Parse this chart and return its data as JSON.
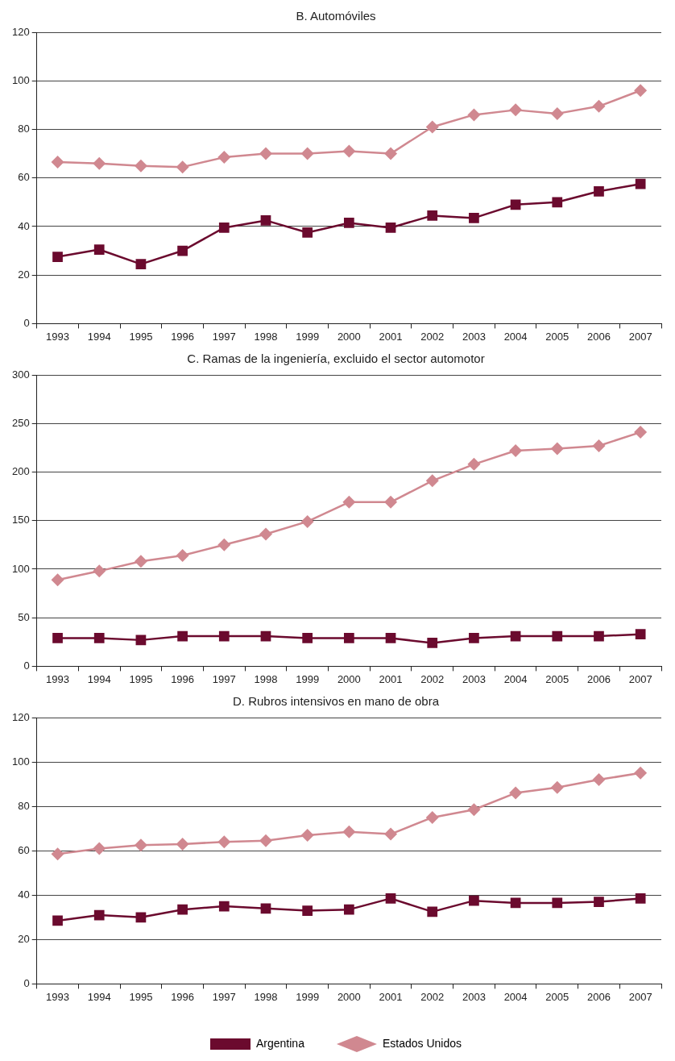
{
  "chart_data": [
    {
      "type": "line",
      "title": "B. Automóviles",
      "categories": [
        "1993",
        "1994",
        "1995",
        "1996",
        "1997",
        "1998",
        "1999",
        "2000",
        "2001",
        "2002",
        "2003",
        "2004",
        "2005",
        "2006",
        "2007"
      ],
      "ylim": [
        0,
        120
      ],
      "yticks": [
        0,
        20,
        40,
        60,
        80,
        100,
        120
      ],
      "grid": "y",
      "legend": false,
      "series": [
        {
          "color": "#6b0a2e",
          "marker": "square",
          "values": [
            27.5,
            30.5,
            24.5,
            30,
            39.5,
            42.5,
            37.5,
            41.5,
            39.5,
            44.5,
            43.5,
            49,
            50,
            54.5,
            57.5
          ]
        },
        {
          "color": "#d08890",
          "marker": "diamond",
          "values": [
            66.5,
            66,
            65,
            64.5,
            68.5,
            70,
            70,
            71,
            70,
            81,
            86,
            88,
            86.5,
            89.5,
            96
          ]
        }
      ]
    },
    {
      "type": "line",
      "title": "C. Ramas de la ingeniería, excluido el sector automotor",
      "categories": [
        "1993",
        "1994",
        "1995",
        "1996",
        "1997",
        "1998",
        "1999",
        "2000",
        "2001",
        "2002",
        "2003",
        "2004",
        "2005",
        "2006",
        "2007"
      ],
      "ylim": [
        0,
        300
      ],
      "yticks": [
        0,
        50,
        100,
        150,
        200,
        250,
        300
      ],
      "grid": "y",
      "legend": false,
      "series": [
        {
          "color": "#6b0a2e",
          "marker": "square",
          "values": [
            29,
            29,
            27,
            31,
            31,
            31,
            29,
            29,
            29,
            24,
            29,
            31,
            31,
            31,
            33
          ]
        },
        {
          "color": "#d08890",
          "marker": "diamond",
          "values": [
            89,
            98,
            108,
            114,
            125,
            136,
            149,
            169,
            169,
            191,
            208,
            222,
            224,
            227,
            241
          ]
        }
      ]
    },
    {
      "type": "line",
      "title": "D. Rubros intensivos en mano de obra",
      "categories": [
        "1993",
        "1994",
        "1995",
        "1996",
        "1997",
        "1998",
        "1999",
        "2000",
        "2001",
        "2002",
        "2003",
        "2004",
        "2005",
        "2006",
        "2007"
      ],
      "ylim": [
        0,
        120
      ],
      "yticks": [
        0,
        20,
        40,
        60,
        80,
        100,
        120
      ],
      "grid": "y",
      "legend": "bottom",
      "series": [
        {
          "name": "Argentina",
          "color": "#6b0a2e",
          "marker": "square",
          "values": [
            28.5,
            31,
            30,
            33.5,
            35,
            34,
            33,
            33.5,
            38.5,
            32.5,
            37.5,
            36.5,
            36.5,
            37,
            38.5
          ]
        },
        {
          "name": "Estados Unidos",
          "color": "#d08890",
          "marker": "diamond",
          "values": [
            58.5,
            61,
            62.5,
            63,
            64,
            64.5,
            67,
            68.5,
            67.5,
            75,
            78.5,
            86,
            88.5,
            92,
            95
          ]
        }
      ]
    }
  ]
}
